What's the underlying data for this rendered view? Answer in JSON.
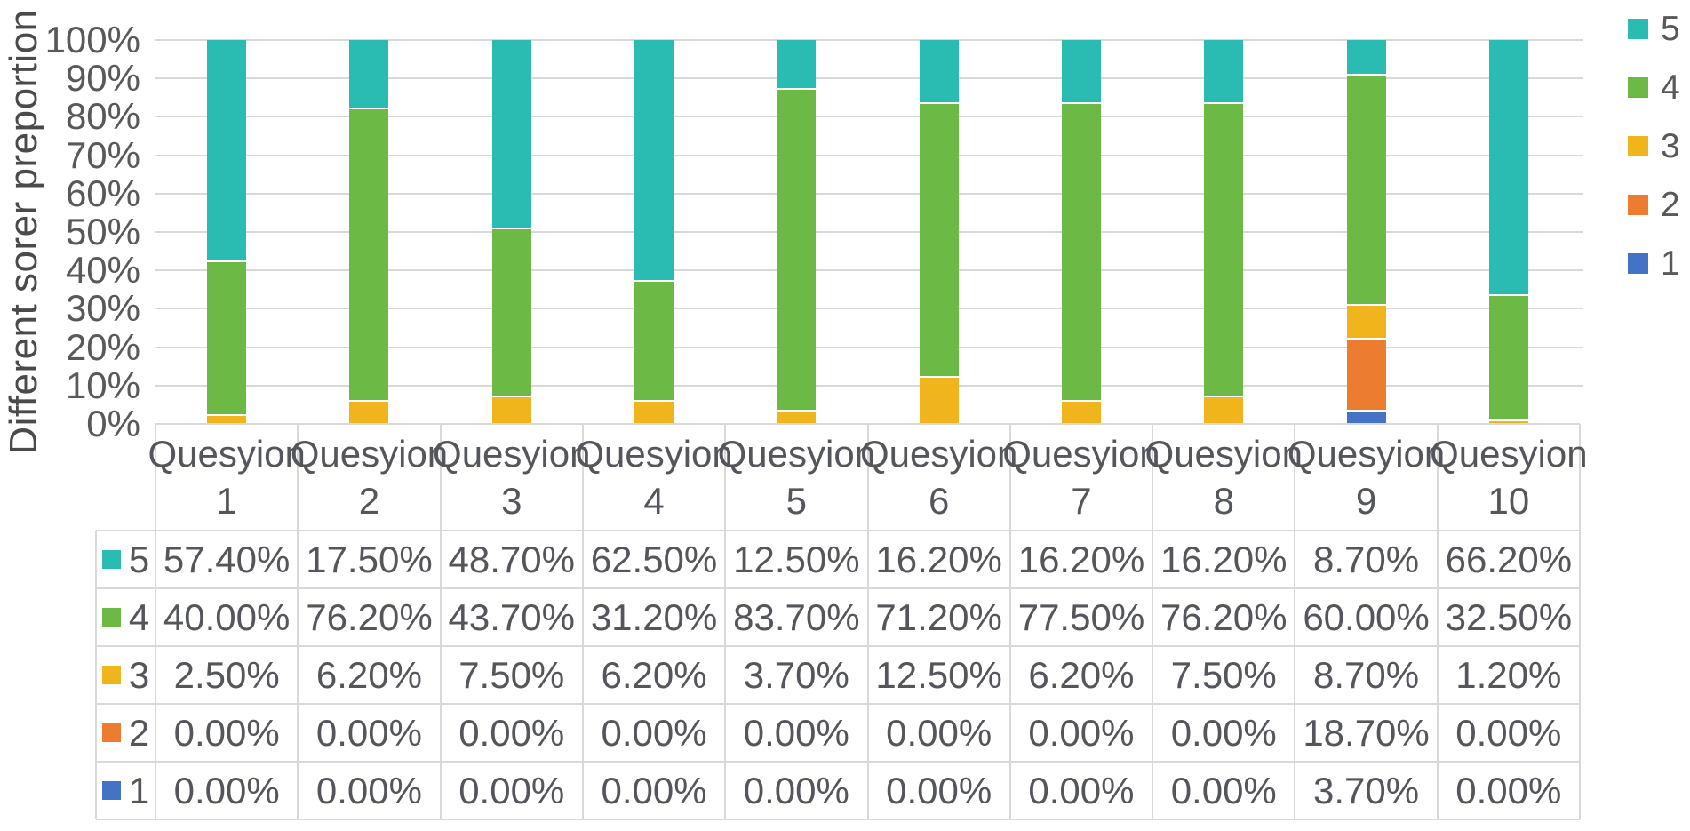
{
  "chart_data": {
    "type": "bar",
    "variant": "stacked-100-percent",
    "title": "",
    "ylabel": "Different sorer preportion",
    "xlabel": "",
    "ylim": [
      0,
      100
    ],
    "yticks": [
      "100%",
      "90%",
      "80%",
      "70%",
      "60%",
      "50%",
      "40%",
      "30%",
      "20%",
      "10%",
      "0%"
    ],
    "grid": true,
    "legend_position": "right",
    "data_table_shown": true,
    "categories": [
      {
        "line1": "Quesyion",
        "line2": "1"
      },
      {
        "line1": "Quesyion",
        "line2": "2"
      },
      {
        "line1": "Quesyion",
        "line2": "3"
      },
      {
        "line1": "Quesyion",
        "line2": "4"
      },
      {
        "line1": "Quesyion",
        "line2": "5"
      },
      {
        "line1": "Quesyion",
        "line2": "6"
      },
      {
        "line1": "Quesyion",
        "line2": "7"
      },
      {
        "line1": "Quesyion",
        "line2": "8"
      },
      {
        "line1": "Quesyion",
        "line2": "9"
      },
      {
        "line1": "Quesyion",
        "line2": "10"
      }
    ],
    "series": [
      {
        "name": "5",
        "color": "#2abcb2",
        "values": [
          57.4,
          17.5,
          48.7,
          62.5,
          12.5,
          16.2,
          16.2,
          16.2,
          8.7,
          66.2
        ],
        "display": [
          "57.40%",
          "17.50%",
          "48.70%",
          "62.50%",
          "12.50%",
          "16.20%",
          "16.20%",
          "16.20%",
          "8.70%",
          "66.20%"
        ]
      },
      {
        "name": "4",
        "color": "#6cba45",
        "values": [
          40.0,
          76.2,
          43.7,
          31.2,
          83.7,
          71.2,
          77.5,
          76.2,
          60.0,
          32.5
        ],
        "display": [
          "40.00%",
          "76.20%",
          "43.70%",
          "31.20%",
          "83.70%",
          "71.20%",
          "77.50%",
          "76.20%",
          "60.00%",
          "32.50%"
        ]
      },
      {
        "name": "3",
        "color": "#f0b41c",
        "values": [
          2.5,
          6.2,
          7.5,
          6.2,
          3.7,
          12.5,
          6.2,
          7.5,
          8.7,
          1.2
        ],
        "display": [
          "2.50%",
          "6.20%",
          "7.50%",
          "6.20%",
          "3.70%",
          "12.50%",
          "6.20%",
          "7.50%",
          "8.70%",
          "1.20%"
        ]
      },
      {
        "name": "2",
        "color": "#ec7d30",
        "values": [
          0.0,
          0.0,
          0.0,
          0.0,
          0.0,
          0.0,
          0.0,
          0.0,
          18.7,
          0.0
        ],
        "display": [
          "0.00%",
          "0.00%",
          "0.00%",
          "0.00%",
          "0.00%",
          "0.00%",
          "0.00%",
          "0.00%",
          "18.70%",
          "0.00%"
        ]
      },
      {
        "name": "1",
        "color": "#4472c4",
        "values": [
          0.0,
          0.0,
          0.0,
          0.0,
          0.0,
          0.0,
          0.0,
          0.0,
          3.7,
          0.0
        ],
        "display": [
          "0.00%",
          "0.00%",
          "0.00%",
          "0.00%",
          "0.00%",
          "0.00%",
          "0.00%",
          "0.00%",
          "3.70%",
          "0.00%"
        ]
      }
    ],
    "legend": [
      {
        "label": "5",
        "color": "#2abcb2"
      },
      {
        "label": "4",
        "color": "#6cba45"
      },
      {
        "label": "3",
        "color": "#f0b41c"
      },
      {
        "label": "2",
        "color": "#ec7d30"
      },
      {
        "label": "1",
        "color": "#4472c4"
      }
    ]
  }
}
